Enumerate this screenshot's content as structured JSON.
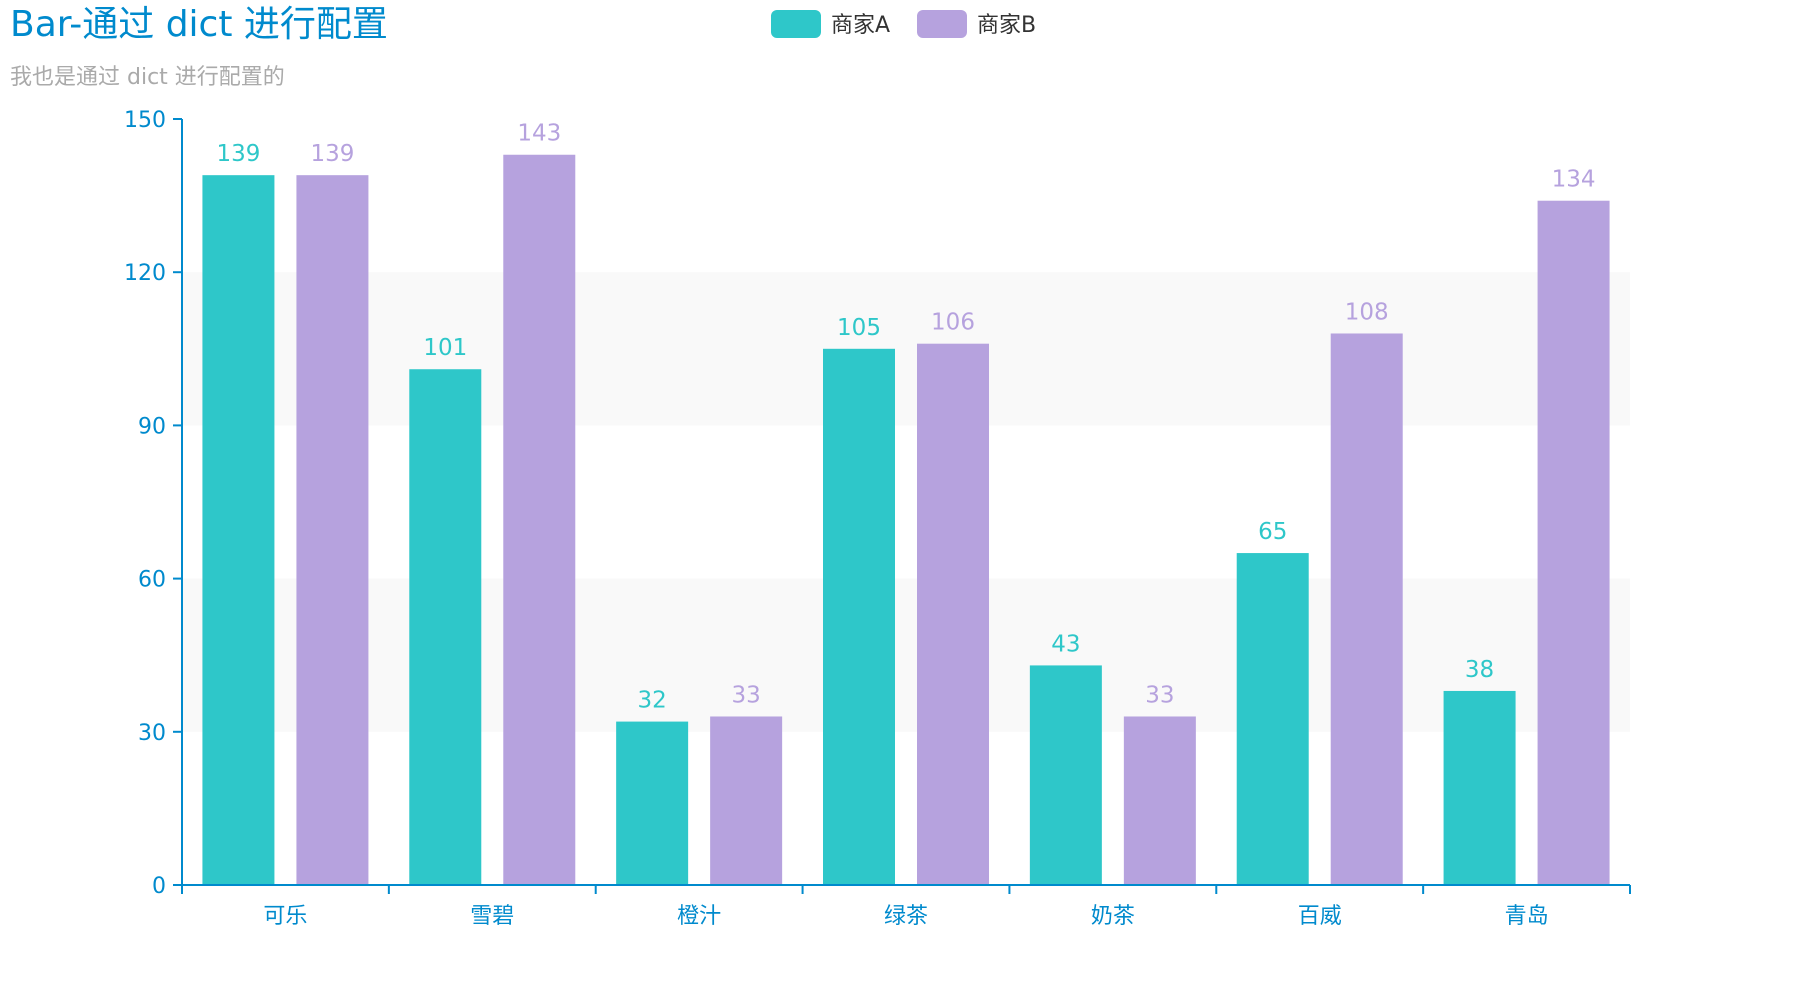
{
  "chart_data": {
    "type": "bar",
    "title": "Bar-通过 dict 进行配置",
    "subtitle": "我也是通过 dict 进行配置的",
    "categories": [
      "可乐",
      "雪碧",
      "橙汁",
      "绿茶",
      "奶茶",
      "百威",
      "青岛"
    ],
    "series": [
      {
        "name": "商家A",
        "values": [
          139,
          101,
          32,
          105,
          43,
          65,
          38
        ],
        "color": "#2ec7c9"
      },
      {
        "name": "商家B",
        "values": [
          139,
          143,
          33,
          106,
          33,
          108,
          134
        ],
        "color": "#b6a2de"
      }
    ],
    "ylim": [
      0,
      150
    ],
    "yticks": [
      "0",
      "30",
      "60",
      "90",
      "120",
      "150"
    ],
    "xlabel": "",
    "ylabel": "",
    "legend_position": "top-center",
    "grid": "alternating horizontal bands",
    "title_color": "#008acd",
    "subtitle_color": "#aaaaaa",
    "axis_color": "#008acd",
    "band_color": "#f9f9f9",
    "legend_text_color": "#333333"
  }
}
